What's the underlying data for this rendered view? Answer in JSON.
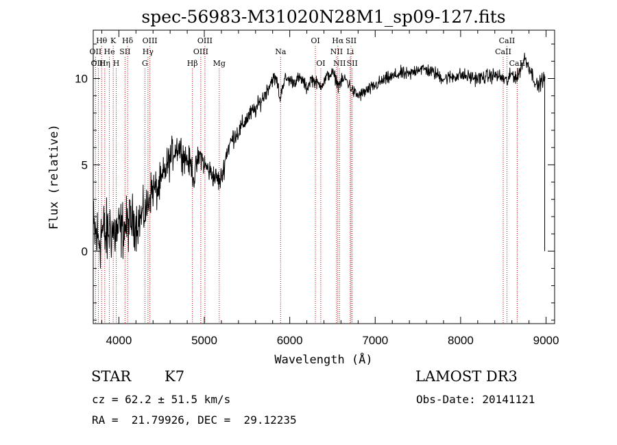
{
  "chart_data": {
    "type": "line",
    "title": "spec-56983-M31020N28M1_sp09-127.fits",
    "xlabel": "Wavelength (Å)",
    "ylabel": "Flux (relative)",
    "xlim": [
      3700,
      9100
    ],
    "ylim": [
      -4.2,
      12.8
    ],
    "x_ticks": [
      4000,
      5000,
      6000,
      7000,
      8000,
      9000
    ],
    "y_ticks": [
      0,
      5,
      10
    ],
    "grid": false,
    "line_color": "#000000",
    "marker_color": "#cc0000",
    "spectrum": {
      "name": "flux",
      "knots": [
        [
          3720,
          1.0
        ],
        [
          3760,
          0.6
        ],
        [
          3800,
          1.2
        ],
        [
          3850,
          0.8
        ],
        [
          3900,
          1.4
        ],
        [
          3950,
          1.0
        ],
        [
          4000,
          1.2
        ],
        [
          4050,
          1.3
        ],
        [
          4100,
          1.5
        ],
        [
          4150,
          1.8
        ],
        [
          4200,
          1.6
        ],
        [
          4250,
          1.9
        ],
        [
          4300,
          2.2
        ],
        [
          4330,
          2.5
        ],
        [
          4360,
          3.3
        ],
        [
          4400,
          3.6
        ],
        [
          4450,
          3.5
        ],
        [
          4500,
          4.0
        ],
        [
          4550,
          4.8
        ],
        [
          4600,
          5.3
        ],
        [
          4650,
          5.9
        ],
        [
          4700,
          6.1
        ],
        [
          4750,
          5.6
        ],
        [
          4800,
          5.3
        ],
        [
          4850,
          4.9
        ],
        [
          4880,
          4.2
        ],
        [
          4920,
          5.2
        ],
        [
          4960,
          5.6
        ],
        [
          5000,
          5.0
        ],
        [
          5050,
          4.7
        ],
        [
          5100,
          4.4
        ],
        [
          5150,
          4.2
        ],
        [
          5180,
          4.0
        ],
        [
          5220,
          4.6
        ],
        [
          5260,
          5.7
        ],
        [
          5300,
          6.2
        ],
        [
          5350,
          6.7
        ],
        [
          5400,
          6.9
        ],
        [
          5450,
          7.3
        ],
        [
          5500,
          7.7
        ],
        [
          5550,
          8.0
        ],
        [
          5600,
          8.2
        ],
        [
          5650,
          8.6
        ],
        [
          5700,
          9.0
        ],
        [
          5750,
          9.5
        ],
        [
          5800,
          10.0
        ],
        [
          5850,
          9.9
        ],
        [
          5893,
          8.6
        ],
        [
          5900,
          9.4
        ],
        [
          5950,
          10.0
        ],
        [
          6000,
          9.9
        ],
        [
          6050,
          9.8
        ],
        [
          6100,
          10.0
        ],
        [
          6150,
          9.9
        ],
        [
          6200,
          9.4
        ],
        [
          6250,
          10.0
        ],
        [
          6300,
          9.8
        ],
        [
          6350,
          9.6
        ],
        [
          6400,
          9.8
        ],
        [
          6450,
          10.2
        ],
        [
          6500,
          10.3
        ],
        [
          6550,
          9.9
        ],
        [
          6563,
          9.6
        ],
        [
          6600,
          9.8
        ],
        [
          6650,
          10.0
        ],
        [
          6700,
          9.6
        ],
        [
          6750,
          9.2
        ],
        [
          6800,
          9.0
        ],
        [
          6850,
          9.1
        ],
        [
          6900,
          9.3
        ],
        [
          6950,
          9.4
        ],
        [
          7000,
          9.6
        ],
        [
          7100,
          9.9
        ],
        [
          7200,
          10.1
        ],
        [
          7300,
          10.3
        ],
        [
          7400,
          10.2
        ],
        [
          7500,
          10.6
        ],
        [
          7600,
          10.5
        ],
        [
          7700,
          10.3
        ],
        [
          7800,
          10.0
        ],
        [
          7900,
          10.1
        ],
        [
          8000,
          10.2
        ],
        [
          8100,
          10.1
        ],
        [
          8200,
          10.0
        ],
        [
          8300,
          10.1
        ],
        [
          8400,
          10.2
        ],
        [
          8500,
          10.0
        ],
        [
          8542,
          9.8
        ],
        [
          8600,
          10.3
        ],
        [
          8662,
          10.0
        ],
        [
          8700,
          10.6
        ],
        [
          8750,
          11.2
        ],
        [
          8800,
          10.7
        ],
        [
          8850,
          10.1
        ],
        [
          8900,
          9.5
        ],
        [
          8950,
          9.9
        ],
        [
          8990,
          10.0
        ]
      ],
      "noise_amplitude": [
        [
          3700,
          1.6
        ],
        [
          4300,
          0.9
        ],
        [
          5000,
          0.5
        ],
        [
          6000,
          0.25
        ],
        [
          9000,
          0.3
        ]
      ]
    },
    "line_markers": [
      {
        "label": "Hθ",
        "x": 3798,
        "row": 1
      },
      {
        "label": "OII",
        "x": 3727,
        "row": 2
      },
      {
        "label": "OIII",
        "x": 3760,
        "row": 3
      },
      {
        "label": "K",
        "x": 3934,
        "row": 1
      },
      {
        "label": "He",
        "x": 3889,
        "row": 2
      },
      {
        "label": "Hη",
        "x": 3835,
        "row": 3
      },
      {
        "label": "Hδ",
        "x": 4102,
        "row": 1
      },
      {
        "label": "SII",
        "x": 4072,
        "row": 2
      },
      {
        "label": "H",
        "x": 3969,
        "row": 3
      },
      {
        "label": "OIII",
        "x": 4363,
        "row": 1
      },
      {
        "label": "Hγ",
        "x": 4341,
        "row": 2
      },
      {
        "label": "G",
        "x": 4305,
        "row": 3
      },
      {
        "label": "OIII",
        "x": 5007,
        "row": 1
      },
      {
        "label": "OIII",
        "x": 4959,
        "row": 2
      },
      {
        "label": "Hβ",
        "x": 4861,
        "row": 3
      },
      {
        "label": "Mg",
        "x": 5175,
        "row": 3
      },
      {
        "label": "Na",
        "x": 5893,
        "row": 2
      },
      {
        "label": "OI",
        "x": 6300,
        "row": 1
      },
      {
        "label": "OI",
        "x": 6363,
        "row": 3
      },
      {
        "label": "Hα",
        "x": 6563,
        "row": 1
      },
      {
        "label": "SII",
        "x": 6717,
        "row": 1
      },
      {
        "label": "NII",
        "x": 6548,
        "row": 2
      },
      {
        "label": "Li",
        "x": 6708,
        "row": 2
      },
      {
        "label": "NII",
        "x": 6583,
        "row": 3
      },
      {
        "label": "SII",
        "x": 6731,
        "row": 3
      },
      {
        "label": "CaII",
        "x": 8542,
        "row": 1
      },
      {
        "label": "CaII",
        "x": 8498,
        "row": 2
      },
      {
        "label": "CaII",
        "x": 8662,
        "row": 3
      }
    ]
  },
  "footer": {
    "object_class": "STAR",
    "subclass": "K7",
    "survey": "LAMOST DR3",
    "redshift_text": "cz = 62.2 ± 51.5 km/s",
    "obs_date_text": "Obs-Date: 20141121",
    "coords_text": "RA =  21.79926, DEC =  29.12235"
  }
}
